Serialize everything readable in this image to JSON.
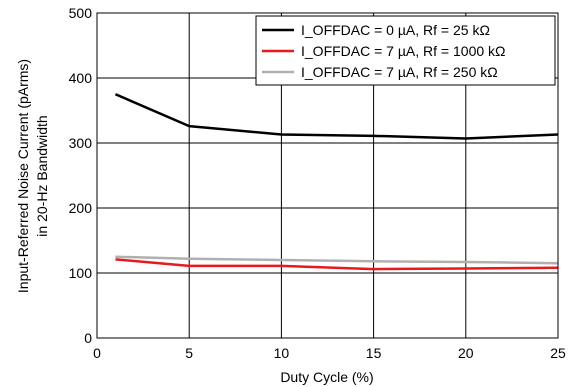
{
  "chart_data": {
    "type": "line",
    "xlabel": "Duty Cycle (%)",
    "ylabel_lines": [
      "Input-Referred Noise Current (pArms)",
      "in 20-Hz Bandwidth"
    ],
    "xlim": [
      0,
      25
    ],
    "ylim": [
      0,
      500
    ],
    "xticks": [
      0,
      5,
      10,
      15,
      20,
      25
    ],
    "yticks": [
      0,
      100,
      200,
      300,
      400,
      500
    ],
    "grid": true,
    "legend_position": "top-right",
    "series": [
      {
        "name": "I_OFFDAC = 0 µA, Rf = 25 kΩ",
        "color": "#000000",
        "x": [
          1,
          5,
          10,
          15,
          20,
          25
        ],
        "y": [
          375,
          326,
          313,
          311,
          307,
          313
        ]
      },
      {
        "name": "I_OFFDAC = 7 µA, Rf = 1000 kΩ",
        "color": "#e8191f",
        "x": [
          1,
          5,
          10,
          15,
          20,
          25
        ],
        "y": [
          121,
          111,
          111,
          106,
          107,
          108
        ]
      },
      {
        "name": "I_OFFDAC = 7 µA, Rf = 250 kΩ",
        "color": "#b0b0b0",
        "x": [
          1,
          5,
          10,
          15,
          20,
          25
        ],
        "y": [
          125,
          122,
          120,
          118,
          117,
          115
        ]
      }
    ]
  }
}
